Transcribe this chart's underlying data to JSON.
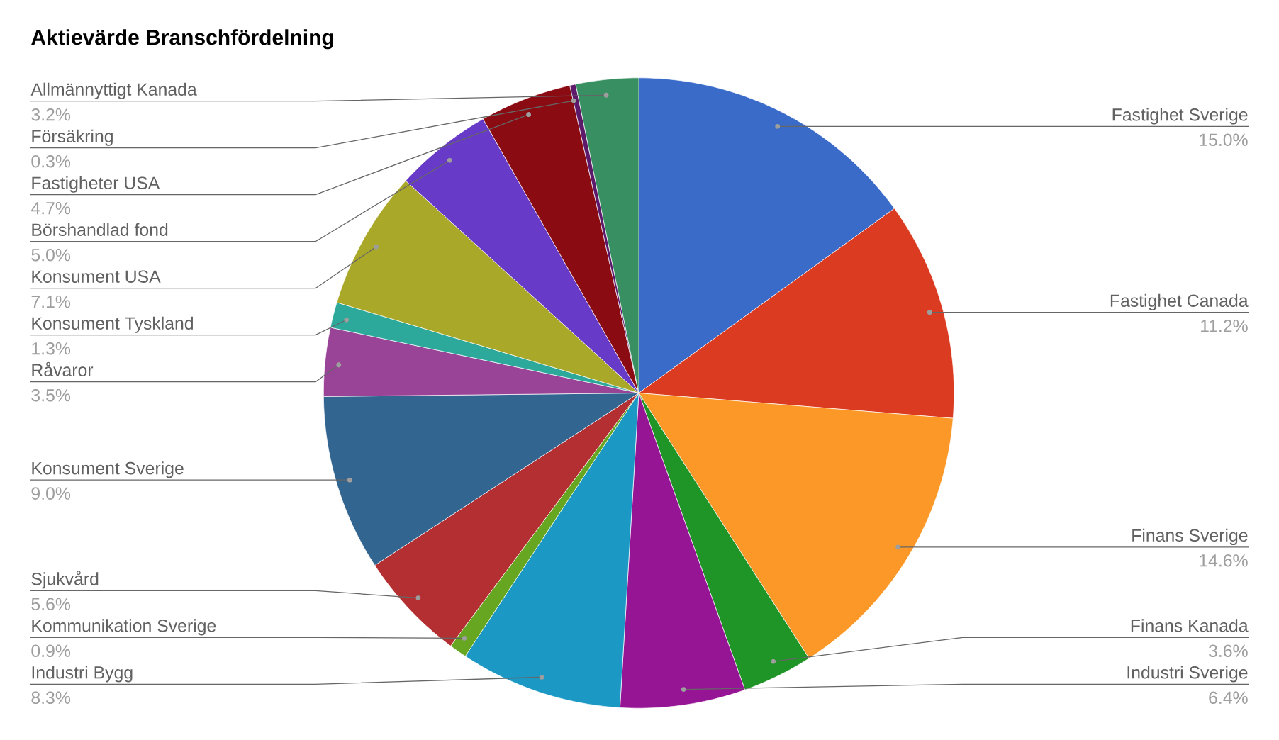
{
  "chart_data": {
    "type": "pie",
    "title": "Aktievärde Branschfördelning",
    "categories": [
      "Fastighet Sverige",
      "Fastighet Canada",
      "Finans Sverige",
      "Finans Kanada",
      "Industri Sverige",
      "Industri Bygg",
      "Kommunikation Sverige",
      "Sjukvård",
      "Konsument Sverige",
      "Råvaror",
      "Konsument Tyskland",
      "Konsument USA",
      "Börshandlad fond",
      "Fastigheter USA",
      "Försäkring",
      "Allmännyttigt Kanada"
    ],
    "values": [
      15.0,
      11.2,
      14.6,
      3.6,
      6.4,
      8.3,
      0.9,
      5.6,
      9.0,
      3.5,
      1.3,
      7.1,
      5.0,
      4.7,
      0.3,
      3.2
    ],
    "value_labels": [
      "15.0%",
      "11.2%",
      "14.6%",
      "3.6%",
      "6.4%",
      "8.3%",
      "0.9%",
      "5.6%",
      "9.0%",
      "3.5%",
      "1.3%",
      "7.1%",
      "5.0%",
      "4.7%",
      "0.3%",
      "3.2%"
    ],
    "colors": [
      "#3a6bc9",
      "#db3c21",
      "#fb9828",
      "#1f9427",
      "#951595",
      "#1c98c5",
      "#66a620",
      "#b42f31",
      "#336591",
      "#994497",
      "#2ca99b",
      "#aaa829",
      "#673bc8",
      "#8a0b12",
      "#5e1a6a",
      "#378f62"
    ]
  }
}
